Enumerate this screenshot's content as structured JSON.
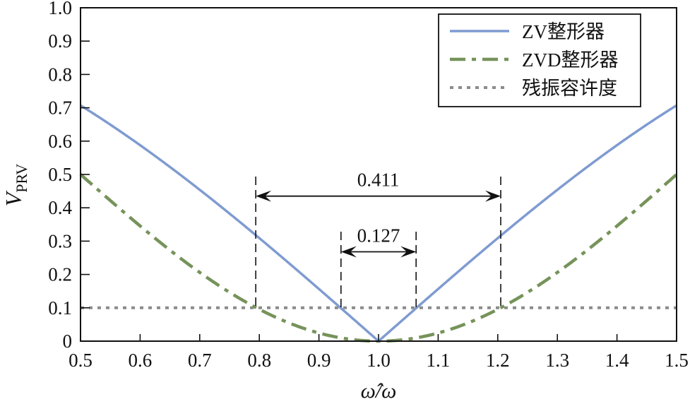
{
  "chart_data": {
    "type": "line",
    "title": "",
    "xlabel": "ω̂/ω",
    "ylabel": "V_PRV",
    "ylabel_main": "V",
    "ylabel_sub": "PRV",
    "xlim": [
      0.5,
      1.5
    ],
    "ylim": [
      0,
      1.0
    ],
    "grid": false,
    "legend_position": "upper-right",
    "x_ticks": [
      "0.5",
      "0.6",
      "0.7",
      "0.8",
      "0.9",
      "1.0",
      "1.1",
      "1.2",
      "1.3",
      "1.4",
      "1.5"
    ],
    "y_ticks": [
      "0",
      "0.1",
      "0.2",
      "0.3",
      "0.4",
      "0.5",
      "0.6",
      "0.7",
      "0.8",
      "0.9",
      "1.0"
    ],
    "x": [
      0.5,
      0.6,
      0.7,
      0.794,
      0.8,
      0.9,
      0.937,
      1.0,
      1.063,
      1.1,
      1.2,
      1.206,
      1.3,
      1.4,
      1.5
    ],
    "series": [
      {
        "name": "ZV整形器",
        "style": "solid",
        "color": "#7f9bd1",
        "values": [
          0.707,
          0.588,
          0.454,
          0.318,
          0.309,
          0.156,
          0.099,
          0.0,
          0.099,
          0.156,
          0.309,
          0.318,
          0.454,
          0.588,
          0.707
        ]
      },
      {
        "name": "ZVD整形器",
        "style": "dash-dot",
        "color": "#76935a",
        "values": [
          0.5,
          0.345,
          0.206,
          0.101,
          0.095,
          0.024,
          0.01,
          0.0,
          0.01,
          0.024,
          0.095,
          0.101,
          0.206,
          0.345,
          0.5
        ]
      },
      {
        "name": "残振容许度",
        "style": "dotted",
        "color": "#8c8c8c",
        "values": [
          0.1,
          0.1,
          0.1,
          0.1,
          0.1,
          0.1,
          0.1,
          0.1,
          0.1,
          0.1,
          0.1,
          0.1,
          0.1,
          0.1,
          0.1
        ]
      }
    ],
    "annotations": [
      {
        "label": "0.411",
        "x_from": 0.794,
        "x_to": 1.205,
        "y": 0.435,
        "description": "ZVD insensitivity width at V=0.1"
      },
      {
        "label": "0.127",
        "x_from": 0.937,
        "x_to": 1.063,
        "y": 0.268,
        "description": "ZV insensitivity width at V=0.1"
      }
    ]
  },
  "legend": {
    "items": [
      {
        "label": "ZV整形器",
        "style": "solid",
        "color": "#7f9bd1"
      },
      {
        "label": "ZVD整形器",
        "style": "dash-dot",
        "color": "#76935a"
      },
      {
        "label": "残振容许度",
        "style": "dotted",
        "color": "#8c8c8c"
      }
    ]
  },
  "colors": {
    "zv": "#7f9bd1",
    "zvd": "#76935a",
    "tolerance": "#8c8c8c",
    "axis": "#111111"
  }
}
